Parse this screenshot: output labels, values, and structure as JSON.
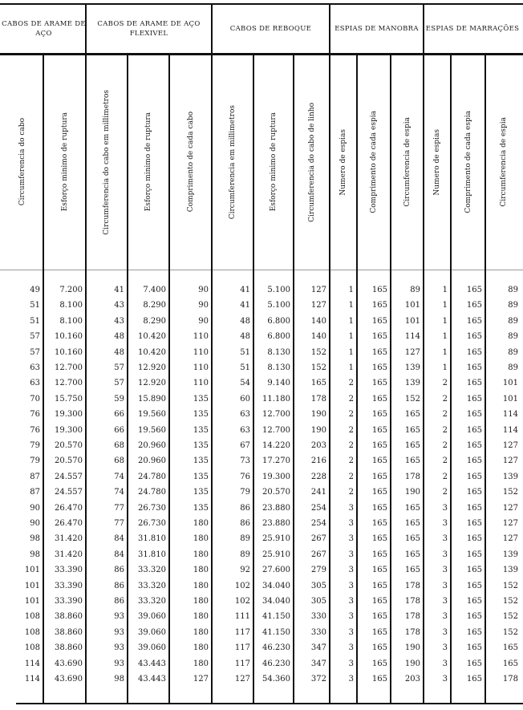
{
  "groups": [
    {
      "label": "CABOS DE ARAME DE AÇO"
    },
    {
      "label": "CABOS DE ARAME DE AÇO FLEXIVEL"
    },
    {
      "label": "CABOS DE REBOQUE"
    },
    {
      "label": "ESPIAS DE MANOBRA"
    },
    {
      "label": "ESPIAS DE MARRAÇÕES"
    }
  ],
  "columns": [
    "Circumferencia do cabo",
    "Esforço minimo de ruptura",
    "Circumferencia do cabo em millimetros",
    "Esforço minimo de ruptura",
    "Comprimento de cada cabo",
    "Circumferencia em millimetros",
    "Esforço minimo de ruptura",
    "Circumferencia do cabo de linho",
    "Numero de espias",
    "Comprimento de cada espia",
    "Circumferencia de espia",
    "Numero de espias",
    "Comprimento de cada espia",
    "Circumferencia de espia"
  ],
  "rows": [
    [
      "49",
      "7.200",
      "41",
      "7.400",
      "90",
      "41",
      "5.100",
      "127",
      "1",
      "165",
      "89",
      "1",
      "165",
      "89"
    ],
    [
      "51",
      "8.100",
      "43",
      "8.290",
      "90",
      "41",
      "5.100",
      "127",
      "1",
      "165",
      "101",
      "1",
      "165",
      "89"
    ],
    [
      "51",
      "8.100",
      "43",
      "8.290",
      "90",
      "48",
      "6.800",
      "140",
      "1",
      "165",
      "101",
      "1",
      "165",
      "89"
    ],
    [
      "57",
      "10.160",
      "48",
      "10.420",
      "110",
      "48",
      "6.800",
      "140",
      "1",
      "165",
      "114",
      "1",
      "165",
      "89"
    ],
    [
      "57",
      "10.160",
      "48",
      "10.420",
      "110",
      "51",
      "8.130",
      "152",
      "1",
      "165",
      "127",
      "1",
      "165",
      "89"
    ],
    [
      "63",
      "12.700",
      "57",
      "12.920",
      "110",
      "51",
      "8.130",
      "152",
      "1",
      "165",
      "139",
      "1",
      "165",
      "89"
    ],
    [
      "63",
      "12.700",
      "57",
      "12.920",
      "110",
      "54",
      "9.140",
      "165",
      "2",
      "165",
      "139",
      "2",
      "165",
      "101"
    ],
    [
      "70",
      "15.750",
      "59",
      "15.890",
      "135",
      "60",
      "11.180",
      "178",
      "2",
      "165",
      "152",
      "2",
      "165",
      "101"
    ],
    [
      "76",
      "19.300",
      "66",
      "19.560",
      "135",
      "63",
      "12.700",
      "190",
      "2",
      "165",
      "165",
      "2",
      "165",
      "114"
    ],
    [
      "76",
      "19.300",
      "66",
      "19.560",
      "135",
      "63",
      "12.700",
      "190",
      "2",
      "165",
      "165",
      "2",
      "165",
      "114"
    ],
    [
      "79",
      "20.570",
      "68",
      "20.960",
      "135",
      "67",
      "14.220",
      "203",
      "2",
      "165",
      "165",
      "2",
      "165",
      "127"
    ],
    [
      "79",
      "20.570",
      "68",
      "20.960",
      "135",
      "73",
      "17.270",
      "216",
      "2",
      "165",
      "165",
      "2",
      "165",
      "127"
    ],
    [
      "87",
      "24.557",
      "74",
      "24.780",
      "135",
      "76",
      "19.300",
      "228",
      "2",
      "165",
      "178",
      "2",
      "165",
      "139"
    ],
    [
      "87",
      "24.557",
      "74",
      "24.780",
      "135",
      "79",
      "20.570",
      "241",
      "2",
      "165",
      "190",
      "2",
      "165",
      "152"
    ],
    [
      "90",
      "26.470",
      "77",
      "26.730",
      "135",
      "86",
      "23.880",
      "254",
      "3",
      "165",
      "165",
      "3",
      "165",
      "127"
    ],
    [
      "90",
      "26.470",
      "77",
      "26.730",
      "180",
      "86",
      "23.880",
      "254",
      "3",
      "165",
      "165",
      "3",
      "165",
      "127"
    ],
    [
      "98",
      "31.420",
      "84",
      "31.810",
      "180",
      "89",
      "25.910",
      "267",
      "3",
      "165",
      "165",
      "3",
      "165",
      "127"
    ],
    [
      "98",
      "31.420",
      "84",
      "31.810",
      "180",
      "89",
      "25.910",
      "267",
      "3",
      "165",
      "165",
      "3",
      "165",
      "139"
    ],
    [
      "101",
      "33.390",
      "86",
      "33.320",
      "180",
      "92",
      "27.600",
      "279",
      "3",
      "165",
      "165",
      "3",
      "165",
      "139"
    ],
    [
      "101",
      "33.390",
      "86",
      "33.320",
      "180",
      "102",
      "34.040",
      "305",
      "3",
      "165",
      "178",
      "3",
      "165",
      "152"
    ],
    [
      "101",
      "33.390",
      "86",
      "33.320",
      "180",
      "102",
      "34.040",
      "305",
      "3",
      "165",
      "178",
      "3",
      "165",
      "152"
    ],
    [
      "108",
      "38.860",
      "93",
      "39.060",
      "180",
      "111",
      "41.150",
      "330",
      "3",
      "165",
      "178",
      "3",
      "165",
      "152"
    ],
    [
      "108",
      "38.860",
      "93",
      "39.060",
      "180",
      "117",
      "41.150",
      "330",
      "3",
      "165",
      "178",
      "3",
      "165",
      "152"
    ],
    [
      "108",
      "38.860",
      "93",
      "39.060",
      "180",
      "117",
      "46.230",
      "347",
      "3",
      "165",
      "190",
      "3",
      "165",
      "165"
    ],
    [
      "114",
      "43.690",
      "93",
      "43.443",
      "180",
      "117",
      "46.230",
      "347",
      "3",
      "165",
      "190",
      "3",
      "165",
      "165"
    ],
    [
      "114",
      "43.690",
      "98",
      "43.443",
      "127",
      "127",
      "54.360",
      "372",
      "3",
      "165",
      "203",
      "3",
      "165",
      "178"
    ]
  ]
}
